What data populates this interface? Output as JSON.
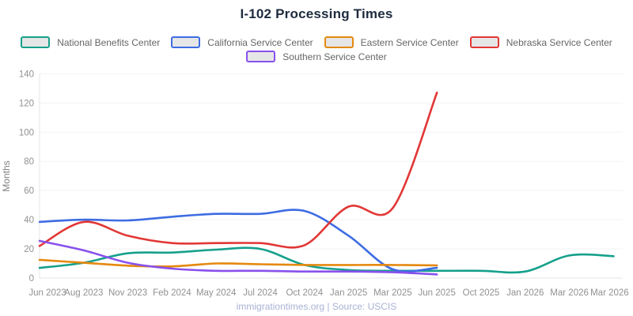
{
  "header": {
    "title": "I-102 Processing Times"
  },
  "footer": {
    "text": "immigrationtimes.org | Source: USCIS"
  },
  "colors": {
    "title_text": "#1e2b3f",
    "legend_text": "#666666",
    "axis_text": "#919191",
    "footer_text": "#a8b2d5",
    "gridline": "#f3f3f3",
    "axis_line": "#e4e4e4",
    "swatch_fill": "#e6e6e6"
  },
  "chart_data": {
    "type": "line",
    "title": "I-102 Processing Times",
    "xlabel": "",
    "ylabel": "Months",
    "ylim": [
      0,
      140
    ],
    "y_ticks": [
      0,
      20,
      40,
      60,
      80,
      100,
      120,
      140
    ],
    "grid": "horizontal",
    "legend_position": "top",
    "categories": [
      "Jun 2023",
      "Aug 2023",
      "Nov 2023",
      "Feb 2024",
      "May 2024",
      "Jul 2024",
      "Oct 2024",
      "Jan 2025",
      "Mar 2025",
      "Jun 2025",
      "Oct 2025",
      "Jan 2026",
      "Mar 2026",
      "Mar 2026"
    ],
    "series": [
      {
        "name": "National Benefits Center",
        "color": "#16a08c",
        "values": [
          7,
          10.5,
          17,
          17.5,
          19.5,
          20,
          9,
          5.5,
          5,
          5,
          5,
          4.5,
          15.5,
          15
        ]
      },
      {
        "name": "California Service Center",
        "color": "#3d6ce3",
        "values": [
          38.5,
          40,
          39.5,
          42,
          44,
          44,
          46,
          29,
          6,
          7,
          null,
          null,
          null,
          null
        ]
      },
      {
        "name": "Eastern Service Center",
        "color": "#e5890f",
        "values": [
          12.5,
          10.5,
          8.5,
          8,
          10,
          9.5,
          9,
          9,
          9,
          8.7,
          null,
          null,
          null,
          null
        ]
      },
      {
        "name": "Nebraska Service Center",
        "color": "#e23736",
        "values": [
          22,
          38.5,
          29,
          24,
          24,
          24,
          22.5,
          49,
          48,
          127,
          null,
          null,
          null,
          null
        ]
      },
      {
        "name": "Southern Service Center",
        "color": "#8951ec",
        "values": [
          25.5,
          19,
          10.5,
          6.5,
          5,
          5,
          4.5,
          4.5,
          4,
          2.5,
          null,
          null,
          null,
          null
        ]
      }
    ]
  }
}
